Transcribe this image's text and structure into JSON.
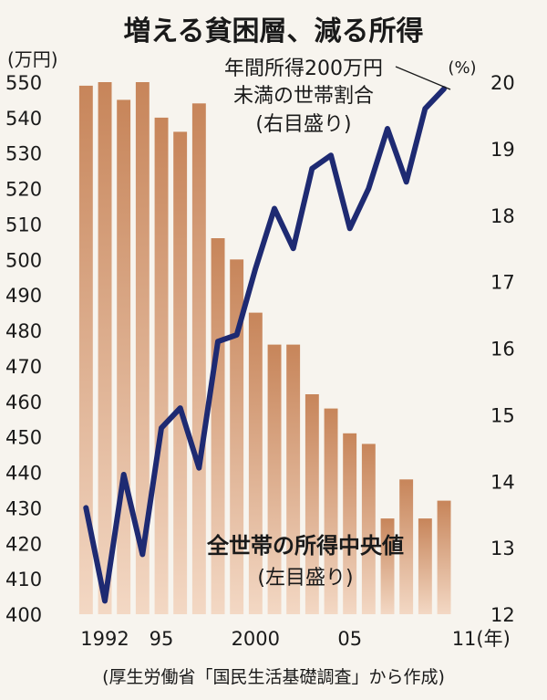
{
  "chart_data": {
    "type": "bar+line",
    "title": "増える貧困層、減る所得",
    "left_axis": {
      "unit": "(万円)",
      "range": [
        400,
        550
      ],
      "ticks": [
        400,
        410,
        420,
        430,
        440,
        450,
        460,
        470,
        480,
        490,
        500,
        510,
        520,
        530,
        540,
        550
      ]
    },
    "right_axis": {
      "unit": "(%)",
      "range": [
        12,
        20
      ],
      "ticks": [
        12,
        13,
        14,
        15,
        16,
        17,
        18,
        19,
        20
      ]
    },
    "x_labels": [
      {
        "year": 1992,
        "label": "1992"
      },
      {
        "year": 1995,
        "label": "95"
      },
      {
        "year": 2000,
        "label": "2000"
      },
      {
        "year": 2005,
        "label": "05"
      },
      {
        "year": 2011,
        "label": "11(年)"
      }
    ],
    "years": [
      1991,
      1992,
      1993,
      1994,
      1995,
      1996,
      1997,
      1998,
      1999,
      2000,
      2001,
      2002,
      2003,
      2004,
      2005,
      2006,
      2007,
      2008,
      2009,
      2010,
      2011
    ],
    "series": [
      {
        "name": "全世帯の所得中央値",
        "name_sub": "(左目盛り)",
        "kind": "bar",
        "axis": "left",
        "values": [
          549,
          550,
          545,
          550,
          540,
          536,
          544,
          506,
          500,
          485,
          476,
          476,
          462,
          458,
          451,
          448,
          427,
          438,
          427,
          432,
          null
        ]
      },
      {
        "name": "年間所得200万円未満の世帯割合",
        "name_lines": [
          "年間所得200万円",
          "未満の世帯割合",
          "(右目盛り)"
        ],
        "kind": "line",
        "axis": "right",
        "values": [
          13.6,
          12.2,
          14.1,
          12.9,
          14.8,
          15.1,
          14.2,
          16.1,
          16.2,
          17.2,
          18.1,
          17.5,
          18.7,
          18.9,
          17.8,
          18.4,
          19.3,
          18.5,
          19.6,
          19.9,
          null
        ]
      }
    ],
    "source": "(厚生労働省「国民生活基礎調査」から作成)",
    "colors": {
      "bar_top": "#c7855a",
      "bar_bottom": "#f3d8c4",
      "line": "#1e2a72",
      "text": "#1a1a1a",
      "background": "#f7f4ee"
    }
  }
}
